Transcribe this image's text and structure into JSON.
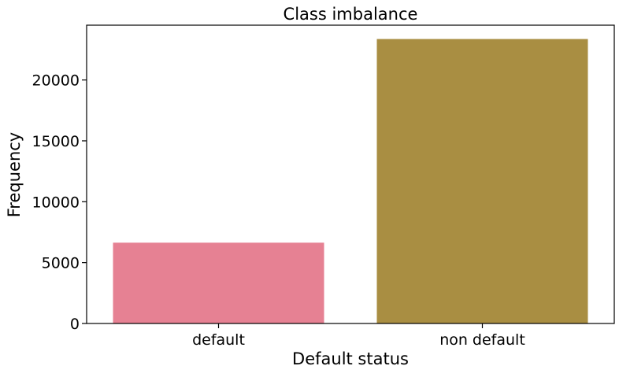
{
  "chart_data": {
    "type": "bar",
    "title": "Class imbalance",
    "xlabel": "Default status",
    "ylabel": "Frequency",
    "categories": [
      "default",
      "non default"
    ],
    "values": [
      6636,
      23364
    ],
    "ylim": [
      0,
      24500
    ],
    "yticks": [
      0,
      5000,
      10000,
      15000,
      20000
    ],
    "ytick_labels": [
      "0",
      "5000",
      "10000",
      "15000",
      "20000"
    ],
    "colors": [
      "#e68193",
      "#a98e42"
    ],
    "grid": false,
    "legend": "none"
  }
}
